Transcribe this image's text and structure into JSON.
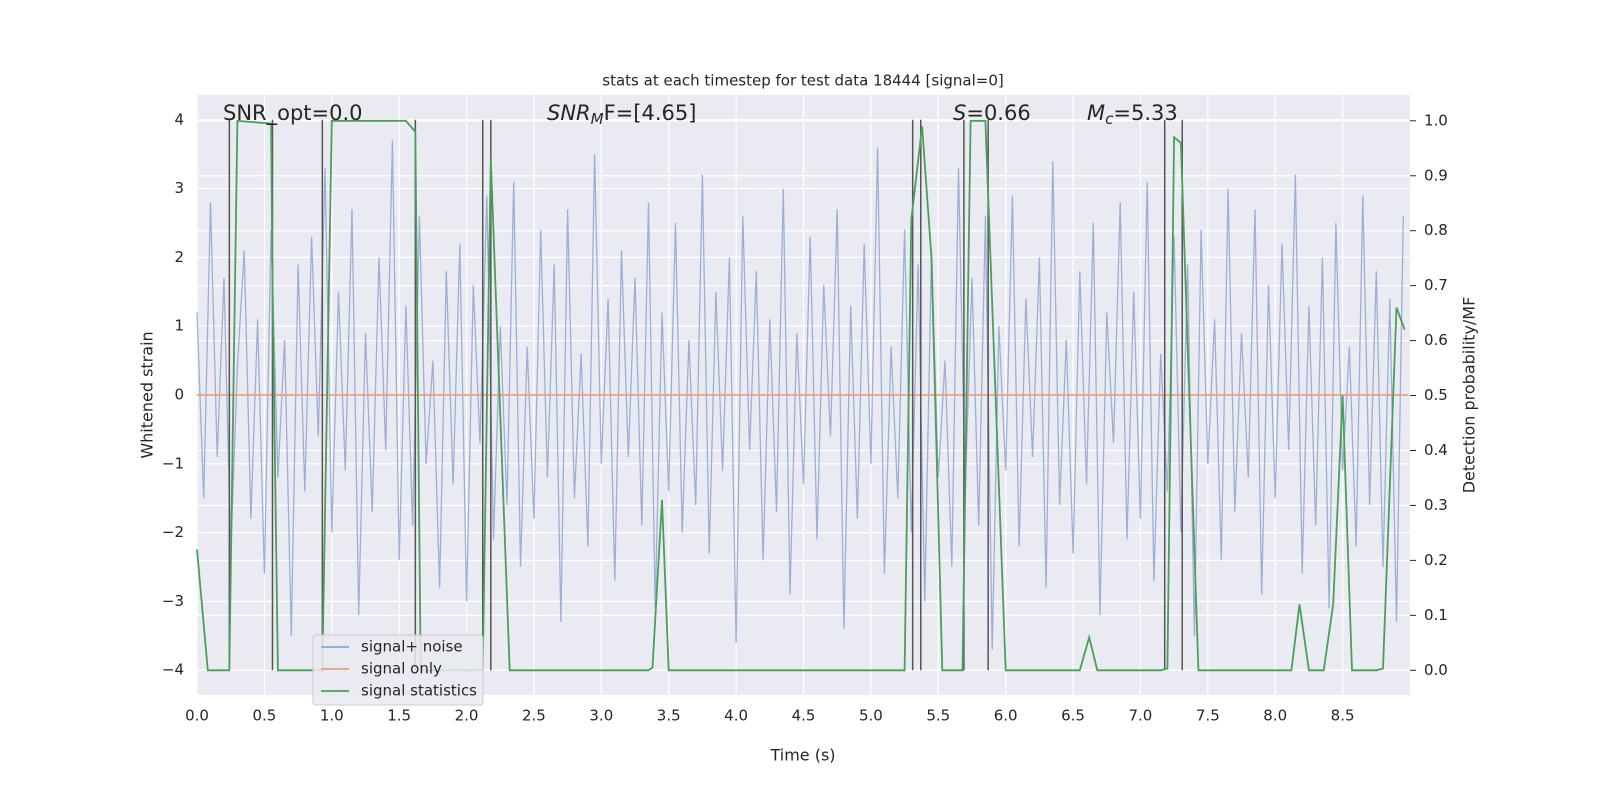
{
  "chart_data": {
    "type": "line",
    "title": "stats at each timestep for test data 18444 [signal=0]",
    "x_label": "Time (s)",
    "y_label": "Whitened strain",
    "y2_label": "Detection probability/MF",
    "annotations": [
      {
        "base": "SNR_opt=0.0"
      },
      {
        "base": "SNR",
        "sub": "M",
        "rest": "F=[4.65]"
      },
      {
        "base": "S",
        "rest": "=0.66"
      },
      {
        "base": "M",
        "sub": "c",
        "rest": "=5.33"
      }
    ],
    "xlim": [
      0,
      9
    ],
    "ylim": [
      -4.36,
      4.36
    ],
    "y2lim": [
      -0.045,
      1.047
    ],
    "xticks": [
      {
        "value": 0,
        "label": "0.0"
      },
      0.5,
      {
        "value": 1,
        "label": "1.0"
      },
      1.5,
      {
        "value": 2,
        "label": "2.0"
      },
      2.5,
      {
        "value": 3,
        "label": "3.0"
      },
      3.5,
      {
        "value": 4,
        "label": "4.0"
      },
      4.5,
      {
        "value": 5,
        "label": "5.0"
      },
      5.5,
      {
        "value": 6,
        "label": "6.0"
      },
      6.5,
      {
        "value": 7,
        "label": "7.0"
      },
      7.5,
      {
        "value": 8,
        "label": "8.0"
      },
      8.5
    ],
    "yticks": [
      {
        "value": -4,
        "label": "−4"
      },
      {
        "value": -3,
        "label": "−3"
      },
      {
        "value": -2,
        "label": "−2"
      },
      {
        "value": -1,
        "label": "−1"
      },
      0,
      1,
      2,
      3,
      4
    ],
    "y2ticks": [
      {
        "value": 0,
        "label": "0.0"
      },
      0.1,
      0.2,
      0.3,
      0.4,
      0.5,
      0.6,
      0.7,
      0.8,
      0.9,
      {
        "value": 1,
        "label": "1.0"
      }
    ],
    "grid": true,
    "legend": "lower left",
    "vlines": [
      0.24,
      0.56,
      0.93,
      1.62,
      2.12,
      2.18,
      5.31,
      5.37,
      5.69,
      5.87,
      7.18,
      7.31
    ],
    "vline_range": [
      -4,
      4
    ],
    "vline_color": "#555555",
    "series": [
      {
        "name": "signal+ noise",
        "color": "#8fa5d0",
        "x": [
          0,
          0.05,
          0.1,
          0.15,
          0.2,
          0.25,
          0.3,
          0.35,
          0.4,
          0.45,
          0.5,
          0.55,
          0.6,
          0.65,
          0.7,
          0.75,
          0.8,
          0.85,
          0.9,
          0.95,
          1,
          1.05,
          1.1,
          1.15,
          1.2,
          1.25,
          1.3,
          1.35,
          1.4,
          1.45,
          1.5,
          1.55,
          1.6,
          1.65,
          1.7,
          1.75,
          1.8,
          1.85,
          1.9,
          1.95,
          2,
          2.05,
          2.1,
          2.15,
          2.2,
          2.25,
          2.3,
          2.35,
          2.4,
          2.45,
          2.5,
          2.55,
          2.6,
          2.65,
          2.7,
          2.75,
          2.8,
          2.85,
          2.9,
          2.95,
          3,
          3.05,
          3.1,
          3.15,
          3.2,
          3.25,
          3.3,
          3.35,
          3.4,
          3.45,
          3.5,
          3.55,
          3.6,
          3.65,
          3.7,
          3.75,
          3.8,
          3.85,
          3.9,
          3.95,
          4,
          4.05,
          4.1,
          4.15,
          4.2,
          4.25,
          4.3,
          4.35,
          4.4,
          4.45,
          4.5,
          4.55,
          4.6,
          4.65,
          4.7,
          4.75,
          4.8,
          4.85,
          4.9,
          4.95,
          5,
          5.05,
          5.1,
          5.15,
          5.2,
          5.25,
          5.3,
          5.35,
          5.4,
          5.45,
          5.5,
          5.55,
          5.6,
          5.65,
          5.7,
          5.75,
          5.8,
          5.85,
          5.9,
          5.95,
          6,
          6.05,
          6.1,
          6.15,
          6.2,
          6.25,
          6.3,
          6.35,
          6.4,
          6.45,
          6.5,
          6.55,
          6.6,
          6.65,
          6.7,
          6.75,
          6.8,
          6.85,
          6.9,
          6.95,
          7,
          7.05,
          7.1,
          7.15,
          7.2,
          7.25,
          7.3,
          7.35,
          7.4,
          7.45,
          7.5,
          7.55,
          7.6,
          7.65,
          7.7,
          7.75,
          7.8,
          7.85,
          7.9,
          7.95,
          8,
          8.05,
          8.1,
          8.15,
          8.2,
          8.25,
          8.3,
          8.35,
          8.4,
          8.45,
          8.5,
          8.55,
          8.6,
          8.65,
          8.7,
          8.75,
          8.8,
          8.85,
          8.9,
          8.95
        ],
        "values": [
          1.2,
          -1.5,
          2.8,
          -0.9,
          1.7,
          -2.3,
          0.4,
          2.1,
          -1.8,
          1.1,
          -2.6,
          2.4,
          -1.2,
          0.8,
          -3.5,
          1.9,
          -1.4,
          2.3,
          -0.6,
          3.3,
          -2.0,
          1.5,
          -1.1,
          2.7,
          -3.2,
          0.9,
          -1.7,
          2.0,
          -0.8,
          3.7,
          -2.4,
          1.3,
          -1.9,
          2.6,
          -1.0,
          0.5,
          -2.8,
          1.8,
          -1.3,
          2.2,
          -3.0,
          1.6,
          -0.7,
          2.9,
          -2.1,
          1.0,
          -1.6,
          3.1,
          -2.5,
          0.7,
          -1.8,
          2.4,
          -1.2,
          1.9,
          -3.3,
          2.7,
          -1.5,
          0.6,
          -2.2,
          3.5,
          -1.0,
          1.4,
          -2.7,
          2.1,
          -0.9,
          1.7,
          -1.9,
          2.8,
          -3.1,
          1.2,
          -1.4,
          2.5,
          -2.0,
          0.8,
          -1.6,
          3.2,
          -2.3,
          1.5,
          -1.1,
          2.0,
          -3.6,
          2.6,
          -0.8,
          1.8,
          -2.4,
          1.1,
          -1.7,
          3.0,
          -2.9,
          0.9,
          -1.3,
          2.3,
          -2.1,
          1.6,
          -0.6,
          2.7,
          -3.4,
          1.3,
          -1.8,
          2.2,
          -1.0,
          3.6,
          -2.6,
          0.7,
          -1.5,
          2.4,
          -2.0,
          1.9,
          -3.0,
          2.1,
          -1.2,
          0.5,
          -2.5,
          3.3,
          -1.4,
          1.7,
          -1.9,
          2.6,
          -3.7,
          1.0,
          -1.1,
          2.9,
          -2.2,
          1.4,
          -0.9,
          2.0,
          -2.8,
          3.4,
          -1.6,
          0.8,
          -2.3,
          1.8,
          -1.3,
          2.5,
          -3.2,
          1.2,
          -0.7,
          2.8,
          -2.1,
          1.5,
          -1.8,
          3.1,
          -2.7,
          0.6,
          -1.4,
          2.3,
          -2.0,
          1.9,
          -3.5,
          2.4,
          -1.0,
          1.1,
          -2.4,
          3.0,
          -1.7,
          0.9,
          -1.2,
          2.7,
          -2.9,
          1.6,
          -1.5,
          2.2,
          -0.8,
          3.2,
          -2.6,
          1.3,
          -1.9,
          2.0,
          -3.1,
          2.5,
          -1.1,
          0.7,
          -2.2,
          2.9,
          -1.6,
          1.8,
          -2.5,
          1.4,
          -3.3,
          2.6
        ]
      },
      {
        "name": "signal only",
        "color": "#e8a07e",
        "x": [
          0,
          8.99
        ],
        "values": [
          0,
          0
        ]
      },
      {
        "name": "signal statistics",
        "color": "#4c9e5a",
        "axis": "y2",
        "x": [
          0,
          0.08,
          0.24,
          0.3,
          0.55,
          0.56,
          0.6,
          0.93,
          1.0,
          1.55,
          1.62,
          1.66,
          2.12,
          2.18,
          2.32,
          3.35,
          3.38,
          3.45,
          3.5,
          5.25,
          5.3,
          5.38,
          5.45,
          5.53,
          5.68,
          5.74,
          5.85,
          6.0,
          6.55,
          6.62,
          6.68,
          7.15,
          7.2,
          7.25,
          7.3,
          7.43,
          8.12,
          8.18,
          8.25,
          8.36,
          8.43,
          8.5,
          8.57,
          8.75,
          8.8,
          8.9,
          8.96
        ],
        "values": [
          0.22,
          0,
          0,
          1.0,
          0.995,
          0.7,
          0,
          0,
          1.0,
          1.0,
          0.98,
          0,
          0,
          0.93,
          0,
          0,
          0.005,
          0.31,
          0,
          0,
          0.82,
          0.99,
          0.75,
          0,
          0,
          1.0,
          1.0,
          0,
          0,
          0.06,
          0,
          0,
          0.003,
          0.97,
          0.96,
          0,
          0,
          0.12,
          0,
          0,
          0.12,
          0.5,
          0,
          0,
          0.003,
          0.66,
          0.62
        ]
      }
    ]
  }
}
